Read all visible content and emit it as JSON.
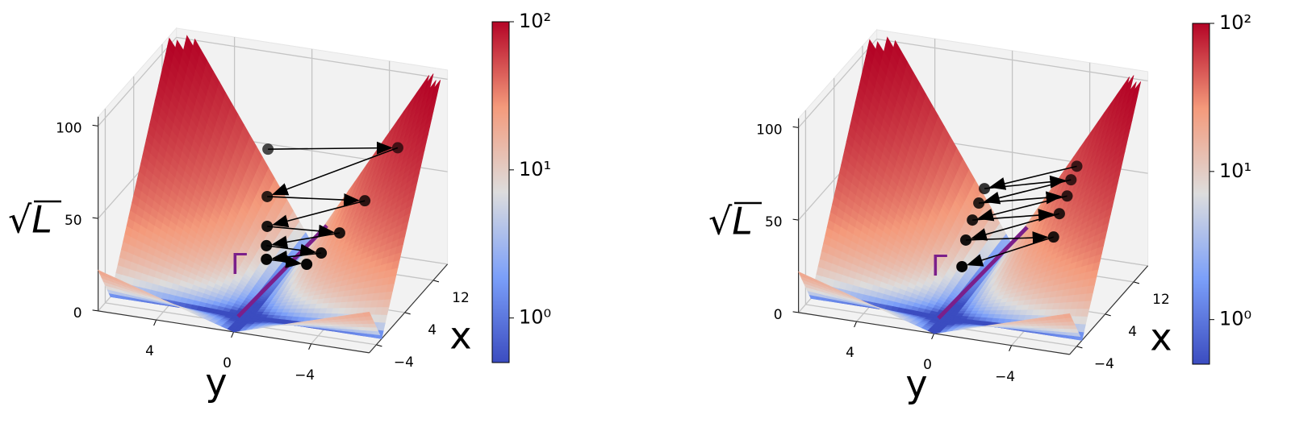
{
  "chart_data": [
    {
      "type": "surface3d",
      "x_label": "x",
      "y_label": "y",
      "z_label": "√L",
      "xlim": [
        -6,
        16
      ],
      "ylim": [
        -7,
        7
      ],
      "zlim": [
        0,
        105
      ],
      "xticks": [
        {
          "value": -4,
          "label": "−4"
        },
        4,
        12
      ],
      "yticks": [
        {
          "value": -4,
          "label": "−4"
        },
        0,
        4
      ],
      "zticks": [
        0,
        50,
        100
      ],
      "grid": true,
      "colorbar": {
        "scale": "log",
        "colormap": "coolwarm",
        "clim": [
          0.5,
          100
        ],
        "ticks": [
          {
            "value": 1,
            "label": "10⁰"
          },
          {
            "value": 10,
            "label": "10¹"
          },
          {
            "value": 100,
            "label": "10²"
          }
        ]
      },
      "annotation": {
        "text": "Γ",
        "color": "#7b1f8a"
      },
      "series": [
        {
          "color": "#000000",
          "x": [
            8,
            8,
            8,
            8,
            8,
            8,
            8,
            8,
            8,
            8
          ],
          "y": [
            0.8,
            -5.9,
            0.84,
            -4.2,
            0.84,
            -2.9,
            0.88,
            -1.95,
            0.88,
            -1.2
          ],
          "z": [
            67,
            78.6,
            41.3,
            47.2,
            25.2,
            27.7,
            14.7,
            15.3,
            7.3,
            8
          ]
        }
      ]
    },
    {
      "type": "surface3d",
      "x_label": "x",
      "y_label": "y",
      "z_label": "√L",
      "xlim": [
        -6,
        16
      ],
      "ylim": [
        -7,
        7
      ],
      "zlim": [
        0,
        105
      ],
      "xticks": [
        {
          "value": -4,
          "label": "−4"
        },
        4,
        12
      ],
      "yticks": [
        {
          "value": -4,
          "label": "−4"
        },
        0,
        4
      ],
      "zticks": [
        0,
        50,
        100
      ],
      "grid": true,
      "colorbar": {
        "scale": "log",
        "colormap": "coolwarm",
        "clim": [
          0.5,
          100
        ],
        "ticks": [
          {
            "value": 1,
            "label": "10⁰"
          },
          {
            "value": 10,
            "label": "10¹"
          },
          {
            "value": 100,
            "label": "10²"
          }
        ]
      },
      "annotation": {
        "text": "Γ",
        "color": "#7b1f8a"
      },
      "series": [
        {
          "color": "#000000",
          "x": [
            8,
            8,
            8,
            8,
            8,
            8,
            8,
            8,
            8,
            8
          ],
          "y": [
            -4.8,
            -0.03,
            -4.5,
            0.26,
            -4.3,
            0.59,
            -3.9,
            0.93,
            -3.6,
            1.13
          ],
          "z": [
            67.7,
            47.9,
            59.9,
            39.6,
            50.8,
            29.9,
            40.6,
            18.5,
            27.5,
            3.8
          ]
        }
      ]
    }
  ]
}
